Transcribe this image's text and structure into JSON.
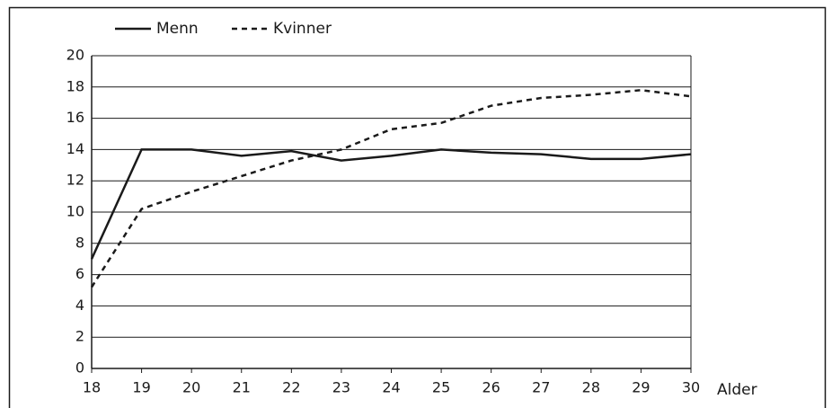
{
  "chart_data": {
    "type": "line",
    "x": [
      18,
      19,
      20,
      21,
      22,
      23,
      24,
      25,
      26,
      27,
      28,
      29,
      30
    ],
    "x_label": "Alder",
    "series": [
      {
        "name": "Menn",
        "color": "#1a1a1a",
        "style": "solid",
        "values": [
          7,
          14,
          14,
          13.6,
          13.9,
          13.3,
          13.6,
          14,
          13.8,
          13.7,
          13.4,
          13.4,
          13.7
        ]
      },
      {
        "name": "Kvinner",
        "color": "#1a1a1a",
        "style": "dashed",
        "values": [
          5.2,
          10.2,
          11.3,
          12.3,
          13.3,
          14,
          15.3,
          15.7,
          16.8,
          17.3,
          17.5,
          17.8,
          17.4
        ]
      }
    ],
    "xlim": [
      18,
      30
    ],
    "xticks": [
      18,
      19,
      20,
      21,
      22,
      23,
      24,
      25,
      26,
      27,
      28,
      29,
      30
    ],
    "ylim": [
      0,
      20
    ],
    "yticks": [
      0,
      2,
      4,
      6,
      8,
      10,
      12,
      14,
      16,
      18,
      20
    ],
    "grid": true,
    "legend": "top-left"
  }
}
